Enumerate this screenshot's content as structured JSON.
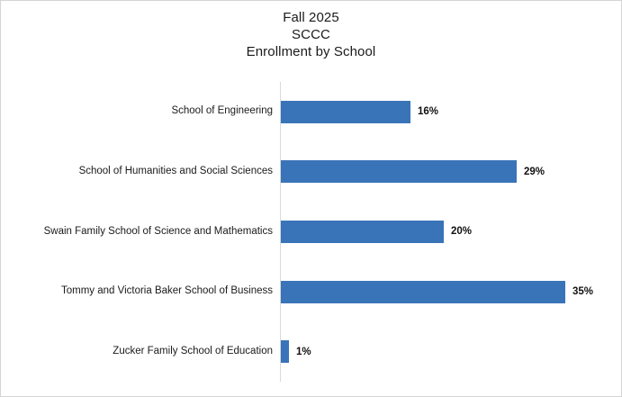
{
  "title": {
    "lines": [
      "Fall 2025",
      "SCCC",
      "Enrollment by School"
    ]
  },
  "chart_data": {
    "type": "bar",
    "orientation": "horizontal",
    "title": "Fall 2025 SCCC Enrollment by School",
    "categories": [
      "School of Engineering",
      "School of Humanities and Social Sciences",
      "Swain Family School of Science and Mathematics",
      "Tommy and Victoria Baker School of Business",
      "Zucker Family School of Education"
    ],
    "values": [
      16,
      29,
      20,
      35,
      1
    ],
    "data_labels": [
      "16%",
      "29%",
      "20%",
      "35%",
      "1%"
    ],
    "xlabel": "",
    "ylabel": "",
    "xlim": [
      0,
      40
    ],
    "grid": false,
    "legend": false,
    "bar_color": "#3a74b8",
    "axis_line_color": "#d9d9d9",
    "text_color": "#1a1a1a"
  }
}
